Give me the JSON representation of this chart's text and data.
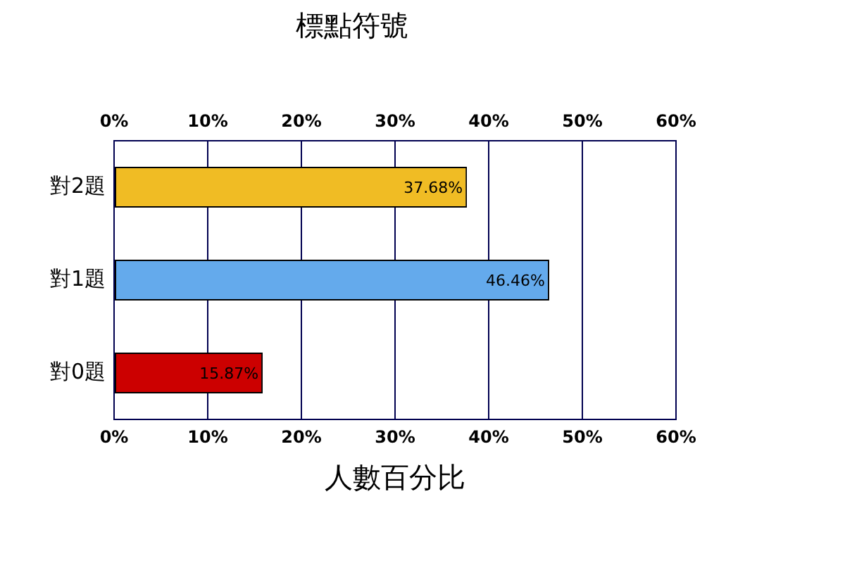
{
  "chart_data": {
    "type": "bar",
    "orientation": "horizontal",
    "title": "標點符號",
    "xlabel": "人數百分比",
    "categories": [
      "對2題",
      "對1題",
      "對0題"
    ],
    "values": [
      37.68,
      46.46,
      15.87
    ],
    "colors": [
      "#f0bc24",
      "#64aaec",
      "#cc0000"
    ],
    "value_labels": [
      "37.68%",
      "46.46%",
      "15.87%"
    ],
    "xlim": [
      0,
      60
    ],
    "xticks": [
      {
        "value": 0,
        "label": "0%"
      },
      {
        "value": 10,
        "label": "10%"
      },
      {
        "value": 20,
        "label": "20%"
      },
      {
        "value": 30,
        "label": "30%"
      },
      {
        "value": 40,
        "label": "40%"
      },
      {
        "value": 50,
        "label": "50%"
      },
      {
        "value": 60,
        "label": "60%"
      }
    ],
    "x2lim": [
      0,
      60
    ],
    "x2ticks": [
      {
        "value": 0,
        "label": "0%"
      },
      {
        "value": 10,
        "label": "10%"
      },
      {
        "value": 20,
        "label": "20%"
      },
      {
        "value": 30,
        "label": "30%"
      },
      {
        "value": 40,
        "label": "40%"
      },
      {
        "value": 50,
        "label": "50%"
      },
      {
        "value": 60,
        "label": "60%"
      }
    ],
    "grid": "x",
    "legend": false
  }
}
